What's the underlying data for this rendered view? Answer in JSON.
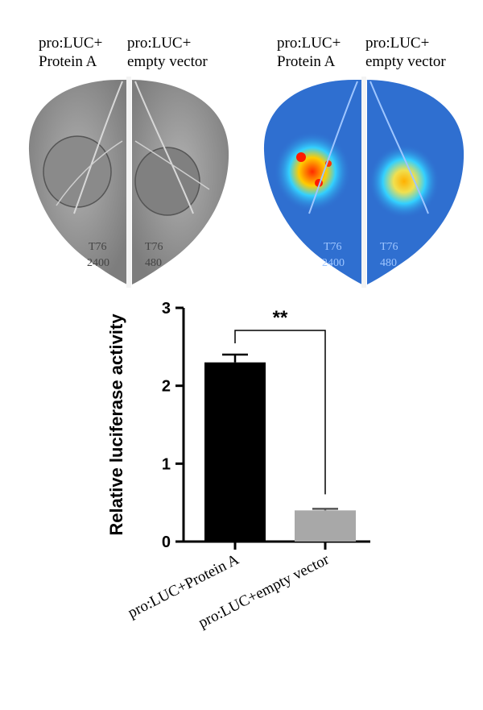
{
  "images": {
    "left": {
      "label_left": "pro:LUC+\nProtein A",
      "label_right": "pro:LUC+\nempty vector"
    },
    "right": {
      "label_left": "pro:LUC+\nProtein A",
      "label_right": "pro:LUC+\nempty vector"
    }
  },
  "colors": {
    "bar_protein_a": "#000000",
    "bar_empty_vector": "#a8a8a8",
    "leaf_gray": "#9a9a9a",
    "leaf_heat_base": "#2f6fd0"
  },
  "chart_data": {
    "type": "bar",
    "categories": [
      "pro:LUC+Protein A",
      "pro:LUC+empty vector"
    ],
    "values": [
      2.3,
      0.4
    ],
    "errors": [
      0.1,
      0.02
    ],
    "title": "",
    "xlabel": "",
    "ylabel": "Relative luciferase activity",
    "ylim": [
      0,
      3
    ],
    "yticks": [
      "0",
      "1",
      "2",
      "3"
    ],
    "grid": false,
    "annotation": {
      "text": "**",
      "between": [
        0,
        1
      ]
    }
  }
}
